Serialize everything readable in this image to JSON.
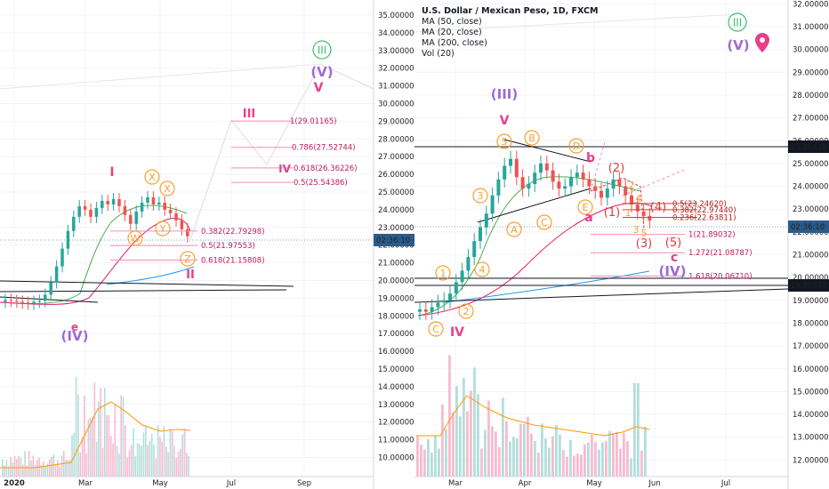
{
  "header": {
    "title": "U.S. Dollar / Mexican Peso, 1D, FXCM",
    "studies": [
      "MA (50, close)",
      "MA (20, close)",
      "MA (200, close)",
      "Vol (20)"
    ]
  },
  "colors": {
    "up_candle": "#26a69a",
    "down_candle": "#ef5350",
    "ma_fast": "#e91e63",
    "ma_slow": "#4caf50",
    "ma_long": "#2196f3",
    "volume_ma": "#ff9800",
    "wave_orange": "#f7a12f",
    "wave_purple": "#9c6bd3",
    "wave_pink": "#e83e8c",
    "wave_green": "#3fbf6f",
    "fib_line": "#f48fb1",
    "price_tag": "#2a5b8a"
  },
  "chart_data": [
    {
      "type": "line",
      "panel": "left",
      "ylim": [
        9.0,
        35.5
      ],
      "y_ticks": [
        "35.00000",
        "34.00000",
        "33.00000",
        "32.00000",
        "31.00000",
        "30.00000",
        "29.00000",
        "28.00000",
        "27.00000",
        "26.00000",
        "25.00000",
        "24.00000",
        "23.00000",
        "22.00000",
        "21.00000",
        "20.00000",
        "19.00000",
        "18.00000",
        "17.00000",
        "16.00000",
        "15.00000",
        "14.00000",
        "13.00000",
        "12.00000",
        "11.00000",
        "10.00000"
      ],
      "x_ticks": [
        "2020",
        "Mar",
        "May",
        "Jul",
        "Sep"
      ],
      "series": [
        {
          "values": [
            18.9,
            18.85,
            18.8,
            18.75,
            18.7,
            18.8,
            18.85,
            19.2,
            19.9,
            20.8,
            21.8,
            22.8,
            23.6,
            24.2,
            24.0,
            23.6,
            24.1,
            24.5,
            24.3,
            24.6,
            24.2,
            23.7,
            23.2,
            23.9,
            24.4,
            24.7,
            24.3,
            24.4,
            24.0,
            23.8,
            23.4,
            22.9,
            22.5
          ]
        }
      ],
      "fib_levels": [
        {
          "ratio": "1",
          "value": 29.01165,
          "label": "1(29.01165)"
        },
        {
          "ratio": "0.786",
          "value": 27.52744,
          "label": "0.786(27.52744)"
        },
        {
          "ratio": "0.618",
          "value": 26.36226,
          "label": "0.618(26.36226)"
        },
        {
          "ratio": "0.5",
          "value": 25.54386,
          "label": "0.5(25.54386)"
        },
        {
          "ratio": "0.382",
          "value": 22.79298,
          "label": "0.382(22.79298)"
        },
        {
          "ratio": "0.5",
          "value": 21.97553,
          "label": "0.5(21.97553)"
        },
        {
          "ratio": "0.618",
          "value": 21.15808,
          "label": "0.618(21.15808)"
        }
      ],
      "last_price": "02:36:10"
    },
    {
      "type": "line",
      "panel": "right",
      "ylim": [
        11.5,
        32.5
      ],
      "y_ticks": [
        "32.00000",
        "31.00000",
        "30.00000",
        "29.00000",
        "28.00000",
        "27.00000",
        "26.00000",
        "25.00000",
        "24.00000",
        "23.00000",
        "22.00000",
        "21.00000",
        "20.00000",
        "19.00000",
        "18.00000",
        "17.00000",
        "16.00000",
        "15.00000",
        "14.00000",
        "13.00000",
        "12.00000"
      ],
      "x_ticks": [
        "Mar",
        "Apr",
        "May",
        "Jun",
        "Jul"
      ],
      "series": [
        {
          "values": [
            18.6,
            18.5,
            18.7,
            18.9,
            19.0,
            19.3,
            19.8,
            20.3,
            20.9,
            21.6,
            22.2,
            22.8,
            23.6,
            24.3,
            24.9,
            25.2,
            24.4,
            23.9,
            24.1,
            24.6,
            25.0,
            24.7,
            24.2,
            23.9,
            24.0,
            24.4,
            24.6,
            24.3,
            24.0,
            23.8,
            23.5,
            23.9,
            24.3,
            24.0,
            23.6,
            23.2,
            22.9,
            22.7,
            22.5
          ]
        }
      ],
      "fib_levels": [
        {
          "ratio": "0.5",
          "value": 23.2462,
          "label": "0.5(23.24620)"
        },
        {
          "ratio": "0.382",
          "value": 22.9744,
          "label": "0.382(22.97440)"
        },
        {
          "ratio": "0.236",
          "value": 22.63811,
          "label": "0.236(22.63811)"
        },
        {
          "ratio": "1",
          "value": 21.89032,
          "label": "1(21.89032)"
        },
        {
          "ratio": "1.272",
          "value": 21.08787,
          "label": "1.272(21.08787)"
        },
        {
          "ratio": "1.618",
          "value": 20.0671,
          "label": "1.618(20.06710)"
        }
      ],
      "tags": [
        "25.76428",
        "02:36:10",
        "19.88577"
      ]
    }
  ],
  "waves_left": {
    "III": "III",
    "V": "(V)",
    "v": "V",
    "I": "I",
    "II": "II",
    "IV": "(IV)",
    "e": "e",
    "rIII": "III",
    "rIV": "IV",
    "X1": "X",
    "X2": "X",
    "Y": "Y",
    "W": "W",
    "Z": "Z"
  },
  "waves_right": {
    "III_big": "(III)",
    "V_small": "V",
    "III_circle": "III",
    "V_top": "(V)",
    "IV_big": "(IV)",
    "IV_small": "IV",
    "n1": "1",
    "n2": "2",
    "n3": "3",
    "n4": "4",
    "n5": "5",
    "A": "A",
    "B": "B",
    "C": "C",
    "D": "D",
    "E": "E",
    "bC": "C",
    "a": "a",
    "b": "b",
    "c": "c",
    "p1": "(1)",
    "p2": "(2)",
    "p3": "(3)",
    "p4": "(4)",
    "p5": "(5)",
    "s1": "1",
    "s2": "2",
    "s3": "3",
    "s4": "4",
    "s5": "5"
  }
}
